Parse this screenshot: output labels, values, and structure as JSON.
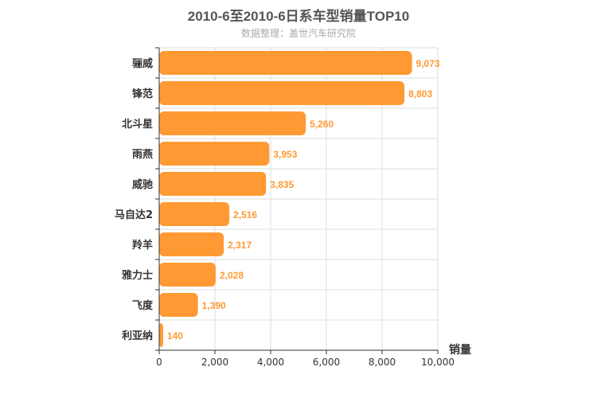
{
  "chart_data": {
    "type": "bar",
    "orientation": "horizontal",
    "title": "2010-6至2010-6日系车型销量TOP10",
    "subtitle": "数据整理：盖世汽车研究院",
    "xlabel": "销量",
    "ylabel": "",
    "xlim": [
      0,
      10000
    ],
    "x_ticks": [
      "0",
      "2,000",
      "4,000",
      "6,000",
      "8,000",
      "10,000"
    ],
    "grid": true,
    "categories": [
      "骊威",
      "锋范",
      "北斗星",
      "雨燕",
      "威驰",
      "马自达2",
      "羚羊",
      "雅力士",
      "飞度",
      "利亚纳"
    ],
    "values": [
      9073,
      8803,
      5260,
      3953,
      3835,
      2516,
      2317,
      2028,
      1390,
      140
    ],
    "value_labels": [
      "9,073",
      "8,803",
      "5,260",
      "3,953",
      "3,835",
      "2,516",
      "2,317",
      "2,028",
      "1,390",
      "140"
    ],
    "colors": {
      "bar": "#ff9933",
      "value_label": "#ff9933",
      "grid": "#dddddd",
      "axis": "#333333",
      "text": "#333333"
    }
  }
}
